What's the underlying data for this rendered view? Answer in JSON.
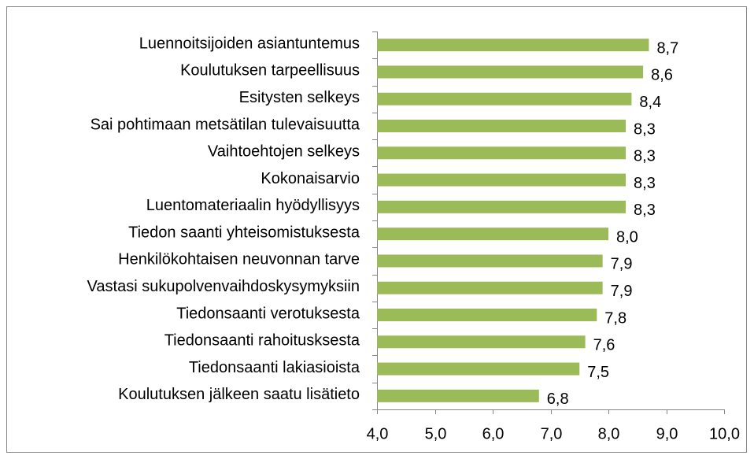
{
  "chart_data": {
    "type": "bar",
    "orientation": "horizontal",
    "categories": [
      "Luennoitsijoiden asiantuntemus",
      "Koulutuksen tarpeellisuus",
      "Esitysten selkeys",
      "Sai pohtimaan metsätilan tulevaisuutta",
      "Vaihtoehtojen selkeys",
      "Kokonaisarvio",
      "Luentomateriaalin hyödyllisyys",
      "Tiedon saanti yhteisomistuksesta",
      "Henkilökohtaisen neuvonnan tarve",
      "Vastasi sukupolvenvaihdoskysymyksiin",
      "Tiedonsaanti verotuksesta",
      "Tiedonsaanti rahoitusksesta",
      "Tiedonsaanti lakiasioista",
      "Koulutuksen jälkeen saatu lisätieto"
    ],
    "values": [
      8.7,
      8.6,
      8.4,
      8.3,
      8.3,
      8.3,
      8.3,
      8.0,
      7.9,
      7.9,
      7.8,
      7.6,
      7.5,
      6.8
    ],
    "value_labels": [
      "8,7",
      "8,6",
      "8,4",
      "8,3",
      "8,3",
      "8,3",
      "8,3",
      "8,0",
      "7,9",
      "7,9",
      "7,8",
      "7,6",
      "7,5",
      "6,8"
    ],
    "color": "#9bbb59",
    "xlim": [
      4,
      10
    ],
    "xticks": [
      {
        "value": 4,
        "label": "4,0"
      },
      {
        "value": 5,
        "label": "5,0"
      },
      {
        "value": 6,
        "label": "6,0"
      },
      {
        "value": 7,
        "label": "7,0"
      },
      {
        "value": 8,
        "label": "8,0"
      },
      {
        "value": 9,
        "label": "9,0"
      },
      {
        "value": 10,
        "label": "10,0"
      }
    ],
    "grid": false
  }
}
